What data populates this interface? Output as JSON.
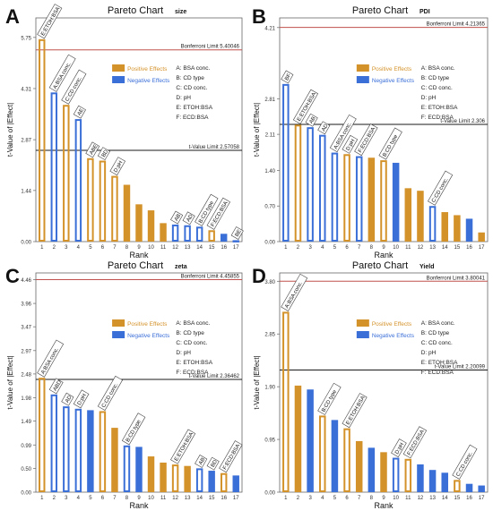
{
  "chart_data": [
    {
      "type": "bar",
      "panel_letter": "A",
      "title": "Pareto Chart",
      "subtitle": "size",
      "xlabel": "Rank",
      "ylabel": "t-Value of |Effect|",
      "yticks": [
        "0.00",
        "1.44",
        "2.87",
        "4.31",
        "5.75"
      ],
      "ylim": [
        0,
        6.3
      ],
      "categories": [
        "1",
        "2",
        "3",
        "4",
        "5",
        "6",
        "7",
        "8",
        "9",
        "10",
        "11",
        "12",
        "13",
        "14",
        "15",
        "16",
        "17"
      ],
      "values": [
        5.7,
        4.2,
        3.85,
        3.45,
        2.35,
        2.28,
        1.85,
        1.6,
        1.05,
        0.88,
        0.52,
        0.48,
        0.46,
        0.42,
        0.32,
        0.22,
        0.04
      ],
      "effect": [
        "pos",
        "neg",
        "pos",
        "neg",
        "pos",
        "pos",
        "pos",
        "pos",
        "pos",
        "pos",
        "pos",
        "neg",
        "neg",
        "neg",
        "pos",
        "neg",
        "neg"
      ],
      "style": [
        "outline",
        "outline",
        "outline",
        "outline",
        "outline",
        "outline",
        "outline",
        "solid",
        "solid",
        "solid",
        "solid",
        "outline",
        "outline",
        "outline",
        "outline",
        "solid",
        "outline"
      ],
      "bar_labels": [
        "E:ETOH:BSA",
        "A:BSA conc.",
        "C:CD conc.",
        "AE",
        "ABE",
        "BD",
        "D:pH",
        "",
        "",
        "",
        "",
        "AB",
        "AD",
        "B:CD type",
        "F:ECD:BSA",
        "",
        "BE"
      ],
      "reference_lines": [
        {
          "label": "Bonferroni Limit 5.40046",
          "value": 5.40046,
          "color": "#c0504d"
        },
        {
          "label": "t-Value Limit 2.57058",
          "value": 2.57058,
          "color": "#1a1a1a"
        }
      ],
      "legend": [
        {
          "label": "Positive Effects",
          "color": "#d4922a"
        },
        {
          "label": "Negative Effects",
          "color": "#3b6fd8"
        }
      ],
      "factor_key": [
        "A: BSA conc.",
        "B: CD type",
        "C: CD conc.",
        "D: pH",
        "E: ETOH:BSA",
        "F: ECD:BSA"
      ],
      "legend_position": "top-right"
    },
    {
      "type": "bar",
      "panel_letter": "B",
      "title": "Pareto Chart",
      "subtitle": "PDI",
      "xlabel": "Rank",
      "ylabel": "t-Value of |Effect|",
      "yticks": [
        "0.00",
        "0.70",
        "1.40",
        "2.11",
        "2.81",
        "4.21"
      ],
      "ylim": [
        0,
        4.4
      ],
      "categories": [
        "1",
        "2",
        "3",
        "4",
        "5",
        "6",
        "7",
        "8",
        "9",
        "10",
        "11",
        "12",
        "13",
        "14",
        "15",
        "16",
        "17"
      ],
      "values": [
        3.1,
        2.3,
        2.25,
        2.1,
        1.75,
        1.72,
        1.68,
        1.65,
        1.6,
        1.55,
        1.05,
        1.0,
        0.7,
        0.58,
        0.52,
        0.45,
        0.18
      ],
      "effect": [
        "neg",
        "pos",
        "neg",
        "neg",
        "neg",
        "pos",
        "neg",
        "pos",
        "pos",
        "neg",
        "pos",
        "pos",
        "neg",
        "pos",
        "pos",
        "neg",
        "pos"
      ],
      "style": [
        "outline",
        "outline",
        "outline",
        "outline",
        "outline",
        "outline",
        "outline",
        "solid",
        "outline",
        "solid",
        "solid",
        "solid",
        "outline",
        "solid",
        "solid",
        "solid",
        "solid"
      ],
      "bar_labels": [
        "BF",
        "E:ETOH:BSA",
        "AB",
        "AD",
        "A:BSA conc.",
        "D:pH",
        "F:ECD:BSA",
        "",
        "B:CD type",
        "",
        "",
        "",
        "C:CD conc.",
        "",
        "",
        "",
        ""
      ],
      "reference_lines": [
        {
          "label": "Bonferroni Limit 4.21365",
          "value": 4.21365,
          "color": "#c0504d"
        },
        {
          "label": "t-Value Limit 2.306",
          "value": 2.306,
          "color": "#1a1a1a"
        }
      ],
      "legend": [
        {
          "label": "Positive Effects",
          "color": "#d4922a"
        },
        {
          "label": "Negative Effects",
          "color": "#3b6fd8"
        }
      ],
      "factor_key": [
        "A: BSA conc.",
        "B: CD type",
        "C: CD conc.",
        "D: pH",
        "E: ETOH:BSA",
        "F: ECD:BSA"
      ],
      "legend_position": "top-right"
    },
    {
      "type": "bar",
      "panel_letter": "C",
      "title": "Pareto Chart",
      "subtitle": "zeta",
      "xlabel": "Rank",
      "ylabel": "t-Value of |Effect|",
      "yticks": [
        "0.00",
        "0.50",
        "0.99",
        "1.49",
        "1.98",
        "2.48",
        "2.97",
        "3.47",
        "3.96",
        "4.46"
      ],
      "ylim": [
        0,
        4.6
      ],
      "categories": [
        "1",
        "2",
        "3",
        "4",
        "5",
        "6",
        "7",
        "8",
        "9",
        "10",
        "11",
        "12",
        "13",
        "14",
        "15",
        "16",
        "17"
      ],
      "values": [
        2.4,
        2.05,
        1.8,
        1.75,
        1.72,
        1.7,
        1.35,
        0.98,
        0.95,
        0.75,
        0.62,
        0.58,
        0.55,
        0.5,
        0.45,
        0.4,
        0.35
      ],
      "effect": [
        "pos",
        "neg",
        "neg",
        "neg",
        "neg",
        "pos",
        "pos",
        "neg",
        "neg",
        "pos",
        "pos",
        "pos",
        "pos",
        "neg",
        "neg",
        "pos",
        "neg"
      ],
      "style": [
        "outline",
        "outline",
        "outline",
        "outline",
        "solid",
        "outline",
        "solid",
        "outline",
        "solid",
        "solid",
        "solid",
        "outline",
        "solid",
        "outline",
        "solid",
        "outline",
        "solid"
      ],
      "bar_labels": [
        "A:BSA conc.",
        "ABD",
        "AD",
        "D:pH",
        "",
        "C:CD conc.",
        "",
        "B:CD type",
        "",
        "",
        "",
        "E:ETOH:BSA",
        "",
        "AB",
        "BD",
        "F:ECD:BSA",
        ""
      ],
      "reference_lines": [
        {
          "label": "Bonferroni Limit 4.45855",
          "value": 4.45855,
          "color": "#c0504d"
        },
        {
          "label": "t-Value Limit 2.36462",
          "value": 2.36462,
          "color": "#1a1a1a"
        }
      ],
      "legend": [
        {
          "label": "Positive Effects",
          "color": "#d4922a"
        },
        {
          "label": "Negative Effects",
          "color": "#3b6fd8"
        }
      ],
      "factor_key": [
        "A: BSA conc.",
        "B: CD type",
        "C: CD conc.",
        "D: pH",
        "E: ETOH:BSA",
        "F: ECD:BSA"
      ],
      "legend_position": "top-right"
    },
    {
      "type": "bar",
      "panel_letter": "D",
      "title": "Pareto Chart",
      "subtitle": "Yield",
      "xlabel": "Rank",
      "ylabel": "t-Value of |Effect|",
      "yticks": [
        "0.00",
        "0.95",
        "1.90",
        "2.85",
        "3.80"
      ],
      "ylim": [
        0,
        3.95
      ],
      "categories": [
        "1",
        "2",
        "3",
        "4",
        "5",
        "6",
        "7",
        "8",
        "9",
        "10",
        "11",
        "12",
        "13",
        "14",
        "15",
        "16",
        "17"
      ],
      "values": [
        3.25,
        1.92,
        1.85,
        1.38,
        1.3,
        1.15,
        0.92,
        0.8,
        0.72,
        0.62,
        0.6,
        0.5,
        0.4,
        0.35,
        0.22,
        0.15,
        0.12
      ],
      "effect": [
        "pos",
        "pos",
        "neg",
        "pos",
        "neg",
        "pos",
        "pos",
        "neg",
        "pos",
        "neg",
        "pos",
        "neg",
        "neg",
        "neg",
        "pos",
        "neg",
        "neg"
      ],
      "style": [
        "outline",
        "solid",
        "solid",
        "outline",
        "solid",
        "outline",
        "solid",
        "solid",
        "solid",
        "outline",
        "outline",
        "solid",
        "solid",
        "solid",
        "outline",
        "solid",
        "solid"
      ],
      "bar_labels": [
        "A:BSA conc.",
        "",
        "",
        "B:CD type",
        "",
        "E:ETOH:BSA",
        "",
        "",
        "",
        "D:pH",
        "F:ECD:BSA",
        "",
        "",
        "",
        "C:CD conc.",
        "",
        ""
      ],
      "reference_lines": [
        {
          "label": "Bonferroni Limit 3.80041",
          "value": 3.80041,
          "color": "#c0504d"
        },
        {
          "label": "t-Value Limit 2.20099",
          "value": 2.20099,
          "color": "#1a1a1a"
        }
      ],
      "legend": [
        {
          "label": "Positive Effects",
          "color": "#d4922a"
        },
        {
          "label": "Negative Effects",
          "color": "#3b6fd8"
        }
      ],
      "factor_key": [
        "A: BSA conc.",
        "B: CD type",
        "C: CD conc.",
        "D: pH",
        "E: ETOH:BSA",
        "F: ECD:BSA"
      ],
      "legend_position": "top-right"
    }
  ]
}
